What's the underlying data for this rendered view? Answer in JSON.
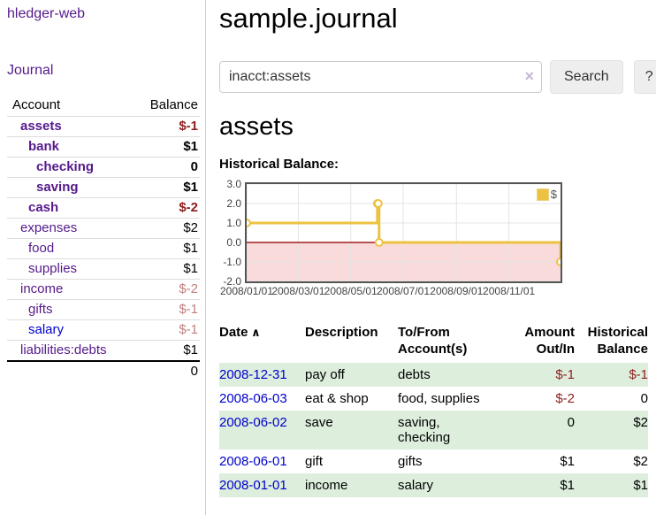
{
  "colors": {
    "link_purple": "#551a8b",
    "link_blue": "#0000cc",
    "negative": "#8f1d1d",
    "negative_muted": "#c08080",
    "row_stripe_green": "#ddeedd",
    "chart_line_gold": "#edc240",
    "chart_negative_fill": "#f9dbdb",
    "chart_zero_line": "#a21c1c",
    "chart_grid": "#e4e4e4",
    "chart_border": "#545454"
  },
  "icons": {
    "clear_search": "×",
    "sort_asc": "∧"
  },
  "sidebar": {
    "app_title": "hledger-web",
    "journal_link": "Journal",
    "account_header": "Account",
    "balance_header": "Balance",
    "accounts": [
      {
        "name": "assets",
        "balance": "$-1",
        "indent": 1,
        "bold": true,
        "neg": "strong"
      },
      {
        "name": "bank",
        "balance": "$1",
        "indent": 2,
        "bold": true,
        "neg": "none"
      },
      {
        "name": "checking",
        "balance": "0",
        "indent": 3,
        "bold": true,
        "neg": "none"
      },
      {
        "name": "saving",
        "balance": "$1",
        "indent": 3,
        "bold": true,
        "neg": "none"
      },
      {
        "name": "cash",
        "balance": "$-2",
        "indent": 2,
        "bold": true,
        "neg": "strong"
      },
      {
        "name": "expenses",
        "balance": "$2",
        "indent": 1,
        "bold": false,
        "neg": "none"
      },
      {
        "name": "food",
        "balance": "$1",
        "indent": 2,
        "bold": false,
        "neg": "none"
      },
      {
        "name": "supplies",
        "balance": "$1",
        "indent": 2,
        "bold": false,
        "neg": "none"
      },
      {
        "name": "income",
        "balance": "$-2",
        "indent": 1,
        "bold": false,
        "neg": "muted"
      },
      {
        "name": "gifts",
        "balance": "$-1",
        "indent": 2,
        "bold": false,
        "neg": "muted"
      },
      {
        "name": "salary",
        "balance": "$-1",
        "indent": 2,
        "bold": false,
        "neg": "muted",
        "link_color": "blue"
      },
      {
        "name": "liabilities:debts",
        "balance": "$1",
        "indent": 1,
        "bold": false,
        "neg": "none"
      }
    ],
    "total": "0"
  },
  "main": {
    "title": "sample.journal",
    "search": {
      "value": "inacct:assets",
      "button_label": "Search",
      "help_label": "?"
    },
    "account_heading": "assets",
    "chart_title": "Historical Balance:"
  },
  "chart_data": {
    "type": "line",
    "step": true,
    "title": "Historical Balance",
    "x_start": "2008-01-01",
    "x_end": "2008-12-31",
    "ylim": [
      -2,
      3
    ],
    "yticks": [
      3.0,
      2.0,
      1.0,
      0.0,
      -1.0,
      -2.0
    ],
    "ytick_labels": [
      "3.0",
      "2.0",
      "1.0",
      "0.0",
      "-1.0",
      "-2.0"
    ],
    "xticks": [
      "2008-01-01",
      "2008-03-01",
      "2008-05-01",
      "2008-07-01",
      "2008-09-01",
      "2008-11-01"
    ],
    "xtick_labels": [
      "2008/01/01",
      "2008/03/01",
      "2008/05/01",
      "2008/07/01",
      "2008/09/01",
      "2008/11/01"
    ],
    "series": [
      {
        "name": "$",
        "color": "#edc240",
        "points": [
          [
            "2008-01-01",
            1
          ],
          [
            "2008-06-01",
            2
          ],
          [
            "2008-06-02",
            2
          ],
          [
            "2008-06-03",
            0
          ],
          [
            "2008-12-31",
            -1
          ]
        ]
      }
    ],
    "negative_region": {
      "from": -2,
      "to": 0,
      "color": "#f9dbdb"
    },
    "zero_line_color": "#a21c1c",
    "grid": true,
    "legend_position": "top-right",
    "legend": [
      {
        "label": "$",
        "color": "#edc240"
      }
    ]
  },
  "register": {
    "headers": [
      {
        "label": "Date",
        "sort": "asc",
        "align": "left"
      },
      {
        "label": "Description",
        "align": "left"
      },
      {
        "label": "To/From\nAccount(s)",
        "align": "left"
      },
      {
        "label": "Amount\nOut/In",
        "align": "right"
      },
      {
        "label": "Historical\nBalance",
        "align": "right"
      }
    ],
    "rows": [
      {
        "date": "2008-12-31",
        "description": "pay off",
        "accounts": "debts",
        "amount": "$-1",
        "amount_negative": true,
        "balance": "$-1",
        "balance_negative": true
      },
      {
        "date": "2008-06-03",
        "description": "eat & shop",
        "accounts": "food, supplies",
        "amount": "$-2",
        "amount_negative": true,
        "balance": "0",
        "balance_negative": false
      },
      {
        "date": "2008-06-02",
        "description": "save",
        "accounts": "saving, checking",
        "amount": "0",
        "amount_negative": false,
        "balance": "$2",
        "balance_negative": false
      },
      {
        "date": "2008-06-01",
        "description": "gift",
        "accounts": "gifts",
        "amount": "$1",
        "amount_negative": false,
        "balance": "$2",
        "balance_negative": false
      },
      {
        "date": "2008-01-01",
        "description": "income",
        "accounts": "salary",
        "amount": "$1",
        "amount_negative": false,
        "balance": "$1",
        "balance_negative": false
      }
    ]
  }
}
